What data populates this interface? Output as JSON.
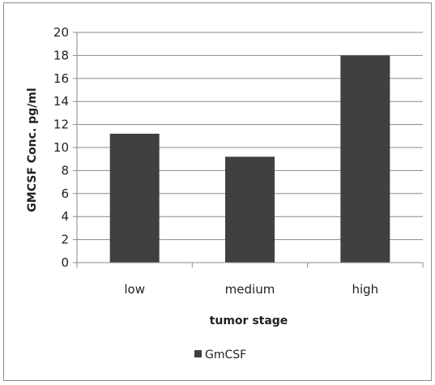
{
  "chart_data": {
    "type": "bar",
    "categories": [
      "low",
      "medium",
      "high"
    ],
    "series": [
      {
        "name": "GmCSF",
        "values": [
          11.2,
          9.2,
          18
        ],
        "color": "#404040"
      }
    ],
    "xlabel": "tumor stage",
    "ylabel": "GMCSF Conc. pg/ml",
    "ylim": [
      0,
      20
    ],
    "yticks": [
      0,
      2,
      4,
      6,
      8,
      10,
      12,
      14,
      16,
      18,
      20
    ],
    "grid": true,
    "legend_position": "bottom"
  }
}
